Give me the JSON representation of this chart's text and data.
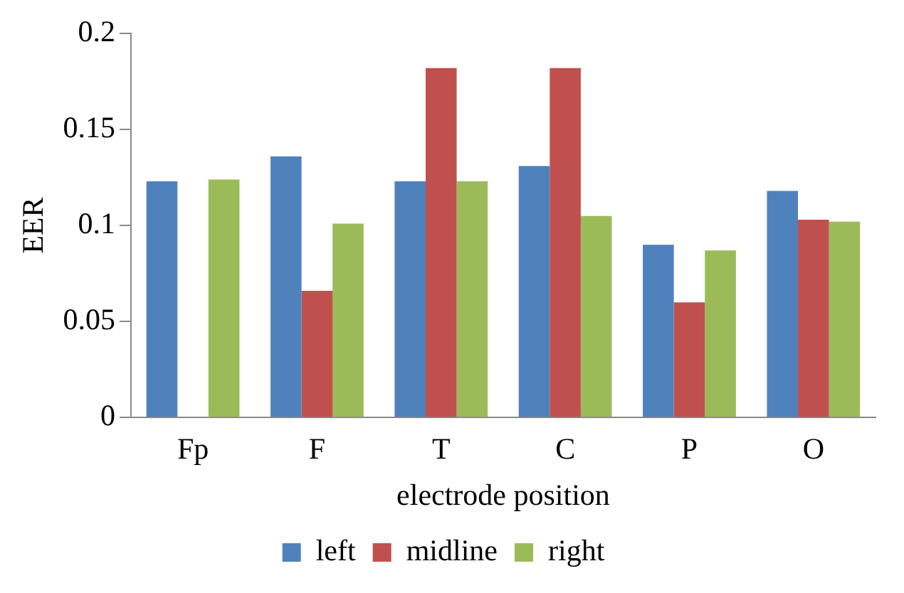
{
  "chart_data": {
    "type": "bar",
    "xlabel": "electrode position",
    "ylabel": "EER",
    "categories": [
      "Fp",
      "F",
      "T",
      "C",
      "P",
      "O"
    ],
    "series": [
      {
        "name": "left",
        "color": "#4f81bd",
        "values": [
          0.123,
          0.136,
          0.123,
          0.131,
          0.09,
          0.118
        ]
      },
      {
        "name": "midline",
        "color": "#c0504d",
        "values": [
          null,
          0.066,
          0.182,
          0.182,
          0.06,
          0.103
        ]
      },
      {
        "name": "right",
        "color": "#9bbb59",
        "values": [
          0.124,
          0.101,
          0.123,
          0.105,
          0.087,
          0.102
        ]
      }
    ],
    "ylim": [
      0,
      0.2
    ],
    "yticks": [
      0,
      0.05,
      0.1,
      0.15,
      0.2
    ],
    "grid": false,
    "legend": "bottom"
  }
}
